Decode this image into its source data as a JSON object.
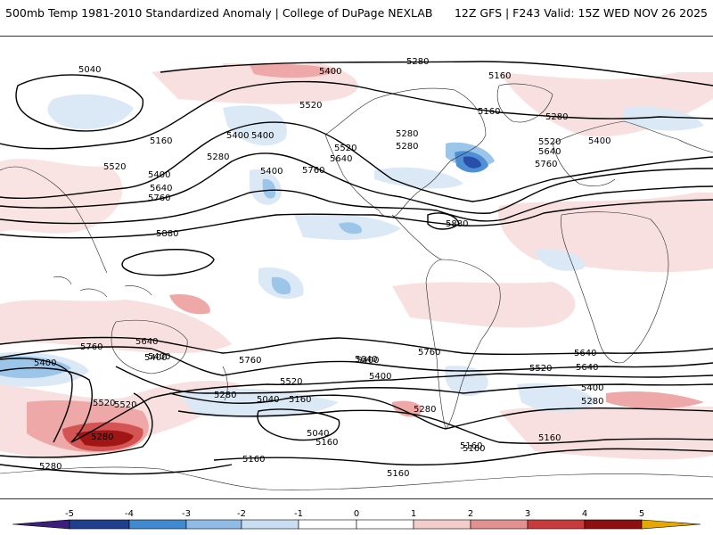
{
  "header": {
    "left": "500mb Temp 1981-2010 Standardized Anomaly | College of DuPage NEXLAB",
    "right": "12Z GFS | F243 Valid: 15Z WED NOV 26 2025"
  },
  "legend": {
    "ticks": [
      "-5",
      "-4",
      "-3",
      "-2",
      "-1",
      "0",
      "1",
      "2",
      "3",
      "4",
      "5"
    ],
    "colors": [
      "#3b1f7a",
      "#1f3f8f",
      "#3f8ad1",
      "#8ebce6",
      "#c9def2",
      "#ffffff",
      "#ffffff",
      "#f5cccc",
      "#e29090",
      "#c73b3b",
      "#8e0f10",
      "#e6a700"
    ]
  },
  "map": {
    "palette": {
      "neg1": "#d6e6f6",
      "neg2": "#9cc5ea",
      "neg3": "#4e8fd6",
      "neg4": "#2a4fa8",
      "pos1": "#f8dada",
      "pos2": "#efa8a8",
      "pos3": "#d45454",
      "pos4": "#a11515"
    },
    "contour_labels": [
      "5040",
      "5400",
      "5280",
      "5160",
      "5520",
      "5160",
      "5280",
      "5400",
      "5520",
      "5640",
      "5760",
      "5520",
      "5640",
      "5760",
      "5160",
      "5280",
      "5400",
      "5400",
      "5280",
      "5880",
      "5880",
      "5760",
      "5640",
      "5400",
      "5400",
      "5280",
      "5520",
      "5280",
      "5040",
      "5160",
      "5040",
      "5160",
      "5520",
      "5160",
      "5640",
      "5400",
      "5520",
      "5640",
      "5760",
      "5400",
      "5400",
      "5280",
      "5160",
      "5160",
      "5760",
      "5640",
      "5280",
      "5160",
      "5400",
      "5760",
      "5640",
      "5520",
      "5400",
      "5400",
      "5280",
      "5160",
      "5280",
      "5520"
    ]
  }
}
